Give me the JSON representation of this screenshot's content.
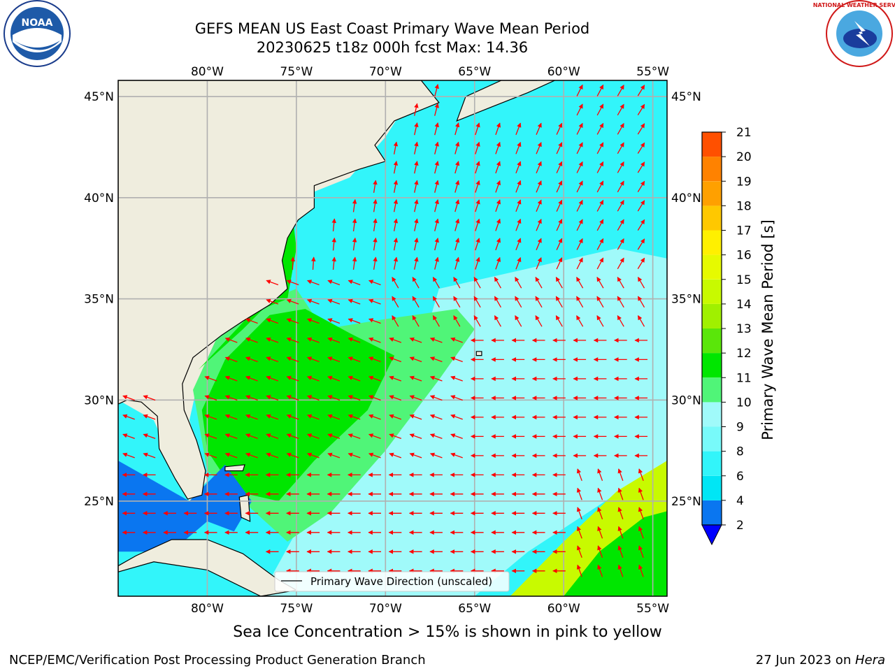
{
  "title": {
    "line1": "GEFS MEAN US East Coast Primary Wave Mean Period",
    "line2": "20230625 t18z 000h fcst   Max: 14.36"
  },
  "map": {
    "lon_labels": [
      "80°W",
      "75°W",
      "70°W",
      "65°W",
      "60°W",
      "55°W"
    ],
    "lat_labels": [
      "45°N",
      "40°N",
      "35°N",
      "30°N",
      "25°N"
    ],
    "lon_range": [
      -85,
      -54.2
    ],
    "lat_range": [
      20.3,
      45.8
    ],
    "land_color": "#efedde",
    "arrow_color": "#ff0000",
    "grid_color": "#b0b0b0"
  },
  "colorbar": {
    "label": "Primary Wave Mean Period [s]",
    "ticks": [
      "2",
      "4",
      "6",
      "8",
      "9",
      "10",
      "11",
      "12",
      "13",
      "14",
      "15",
      "16",
      "17",
      "18",
      "19",
      "20",
      "21"
    ],
    "colors": [
      "#0a76f0",
      "#00e6f5",
      "#32f5fa",
      "#78fafa",
      "#a0fafa",
      "#50f578",
      "#00e600",
      "#5ae60a",
      "#a0f000",
      "#c8fa00",
      "#e6fa00",
      "#fff000",
      "#ffc800",
      "#ffa000",
      "#ff8200",
      "#ff5000",
      "#ff1e00",
      "#ff0000"
    ],
    "under_color": "#0000ff"
  },
  "legend": {
    "label": "Primary Wave Direction (unscaled)"
  },
  "subtitle": "Sea Ice Concentration > 15% is shown in pink to yellow",
  "footer": {
    "left": "NCEP/EMC/Verification Post Processing Product Generation Branch",
    "right_date": "27 Jun 2023 on ",
    "right_machine": "Hera"
  },
  "logos": {
    "noaa": "NOAA",
    "nws": "NATIONAL WEATHER SERVICE"
  }
}
